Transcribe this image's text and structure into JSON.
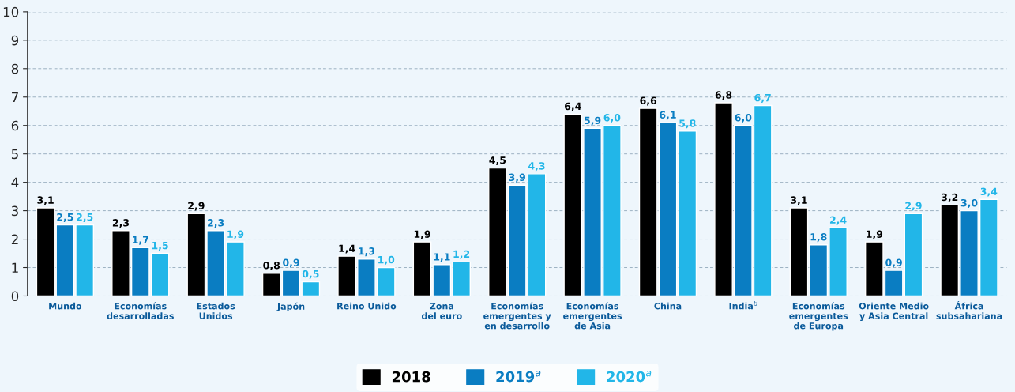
{
  "chart_data": {
    "type": "bar",
    "categories": [
      "Mundo",
      "Economías\ndesarrolladas",
      "Estados\nUnidos",
      "Japón",
      "Reino Unido",
      "Zona\ndel euro",
      "Economías\nemergentes y\nen desarrollo",
      "Economías\nemergentes\nde Asia",
      "China",
      "India$^{b}$",
      "Economías\nemergentes\nde Europa",
      "Oriente Medio\ny Asia Central",
      "África\nsubsahariana"
    ],
    "series": [
      {
        "name": "2018",
        "color": "#000000",
        "values": [
          3.1,
          2.3,
          2.9,
          0.8,
          1.4,
          1.9,
          4.5,
          6.4,
          6.6,
          6.8,
          3.1,
          1.9,
          3.2
        ],
        "value_labels": [
          "3,1",
          "2,3",
          "2,9",
          "0,8",
          "1,4",
          "1,9",
          "4,5",
          "6,4",
          "6,6",
          "6,8",
          "3,1",
          "1,9",
          "3,2"
        ]
      },
      {
        "name": "2019$^{a}$",
        "color": "#0a7dc2",
        "values": [
          2.5,
          1.7,
          2.3,
          0.9,
          1.3,
          1.1,
          3.9,
          5.9,
          6.1,
          6.0,
          1.8,
          0.9,
          3.0
        ],
        "value_labels": [
          "2,5",
          "1,7",
          "2,3",
          "0,9",
          "1,3",
          "1,1",
          "3,9",
          "5,9",
          "6,1",
          "6,0",
          "1,8",
          "0,9",
          "3,0"
        ]
      },
      {
        "name": "2020$^{a}$",
        "color": "#22b6e8",
        "values": [
          2.5,
          1.5,
          1.9,
          0.5,
          1.0,
          1.2,
          4.3,
          6.0,
          5.8,
          6.7,
          2.4,
          2.9,
          3.4
        ],
        "value_labels": [
          "2,5",
          "1,5",
          "1,9",
          "0,5",
          "1,0",
          "1,2",
          "4,3",
          "6,0",
          "5,8",
          "6,7",
          "2,4",
          "2,9",
          "3,4"
        ]
      }
    ],
    "ylim": [
      0,
      10
    ],
    "yticks": [
      0,
      1,
      2,
      3,
      4,
      5,
      6,
      7,
      8,
      9,
      10
    ],
    "grid": "y",
    "legend": "bottom"
  }
}
